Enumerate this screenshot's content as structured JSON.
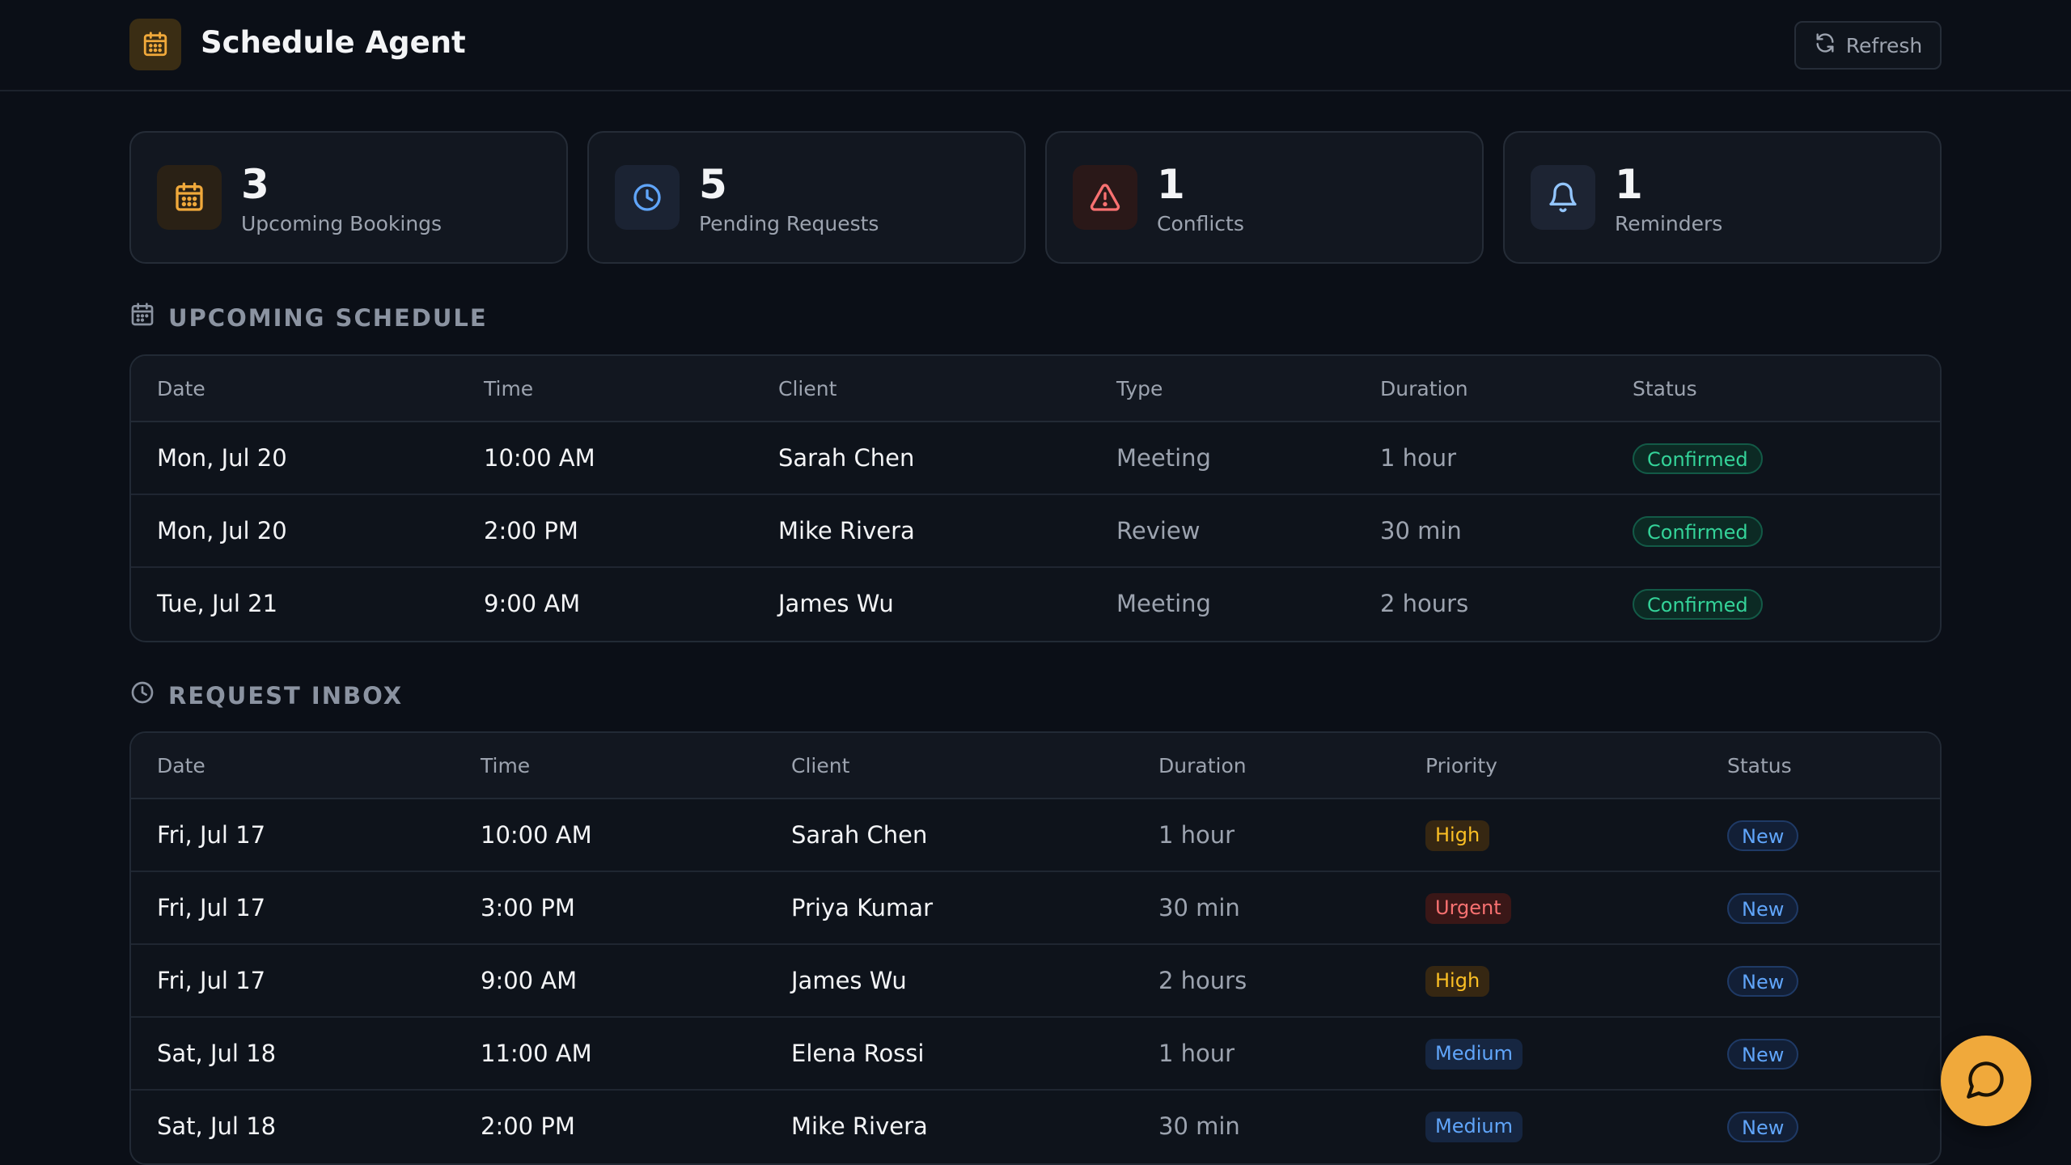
{
  "header": {
    "title": "Schedule Agent",
    "refresh_label": "Refresh",
    "brand_icon": "calendar-icon"
  },
  "stats": [
    {
      "value": "3",
      "label": "Upcoming Bookings",
      "icon": "calendar-icon",
      "accent": "#f0a93b"
    },
    {
      "value": "5",
      "label": "Pending Requests",
      "icon": "clock-icon",
      "accent": "#60a5fa"
    },
    {
      "value": "1",
      "label": "Conflicts",
      "icon": "warning-icon",
      "accent": "#f87171"
    },
    {
      "value": "1",
      "label": "Reminders",
      "icon": "bell-icon",
      "accent": "#93c5fd"
    }
  ],
  "upcoming": {
    "title": "UPCOMING SCHEDULE",
    "columns": [
      "Date",
      "Time",
      "Client",
      "Type",
      "Duration",
      "Status"
    ],
    "rows": [
      {
        "date": "Mon, Jul 20",
        "time": "10:00 AM",
        "client": "Sarah Chen",
        "type": "Meeting",
        "duration": "1 hour",
        "status": "Confirmed"
      },
      {
        "date": "Mon, Jul 20",
        "time": "2:00 PM",
        "client": "Mike Rivera",
        "type": "Review",
        "duration": "30 min",
        "status": "Confirmed"
      },
      {
        "date": "Tue, Jul 21",
        "time": "9:00 AM",
        "client": "James Wu",
        "type": "Meeting",
        "duration": "2 hours",
        "status": "Confirmed"
      }
    ]
  },
  "inbox": {
    "title": "REQUEST INBOX",
    "columns": [
      "Date",
      "Time",
      "Client",
      "Duration",
      "Priority",
      "Status"
    ],
    "rows": [
      {
        "date": "Fri, Jul 17",
        "time": "10:00 AM",
        "client": "Sarah Chen",
        "duration": "1 hour",
        "priority": "High",
        "status": "New"
      },
      {
        "date": "Fri, Jul 17",
        "time": "3:00 PM",
        "client": "Priya Kumar",
        "duration": "30 min",
        "priority": "Urgent",
        "status": "New"
      },
      {
        "date": "Fri, Jul 17",
        "time": "9:00 AM",
        "client": "James Wu",
        "duration": "2 hours",
        "priority": "High",
        "status": "New"
      },
      {
        "date": "Sat, Jul 18",
        "time": "11:00 AM",
        "client": "Elena Rossi",
        "duration": "1 hour",
        "priority": "Medium",
        "status": "New"
      },
      {
        "date": "Sat, Jul 18",
        "time": "2:00 PM",
        "client": "Mike Rivera",
        "duration": "30 min",
        "priority": "Medium",
        "status": "New"
      }
    ]
  },
  "fab": {
    "icon": "chat-icon",
    "color": "#f0a93b"
  }
}
